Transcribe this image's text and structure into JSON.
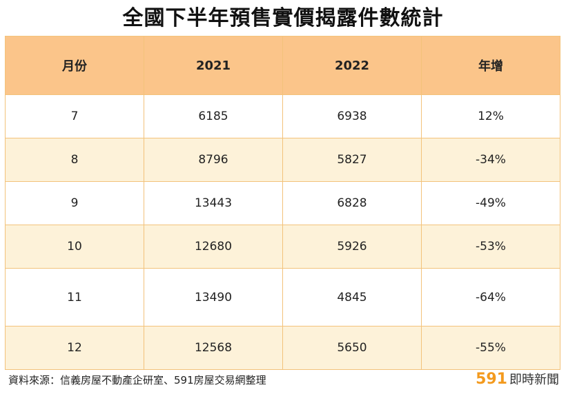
{
  "title": "全國下半年預售實價揭露件數統計",
  "table": {
    "headers": [
      "月份",
      "2021",
      "2022",
      "年增"
    ],
    "rows": [
      [
        "7",
        "6185",
        "6938",
        "12%"
      ],
      [
        "8",
        "8796",
        "5827",
        "-34%"
      ],
      [
        "9",
        "13443",
        "6828",
        "-49%"
      ],
      [
        "10",
        "12680",
        "5926",
        "-53%"
      ],
      [
        "11",
        "13490",
        "4845",
        "-64%"
      ],
      [
        "12",
        "12568",
        "5650",
        "-55%"
      ]
    ]
  },
  "footer": {
    "source": "資料來源：信義房屋不動產企研室、591房屋交易網整理",
    "brand_number": "591",
    "brand_text": "即時新聞"
  },
  "colors": {
    "header_bg": "#fbc58a",
    "stripe_bg": "#fdf2d9",
    "border": "#f3c27a",
    "brand_accent": "#f39a1e"
  }
}
